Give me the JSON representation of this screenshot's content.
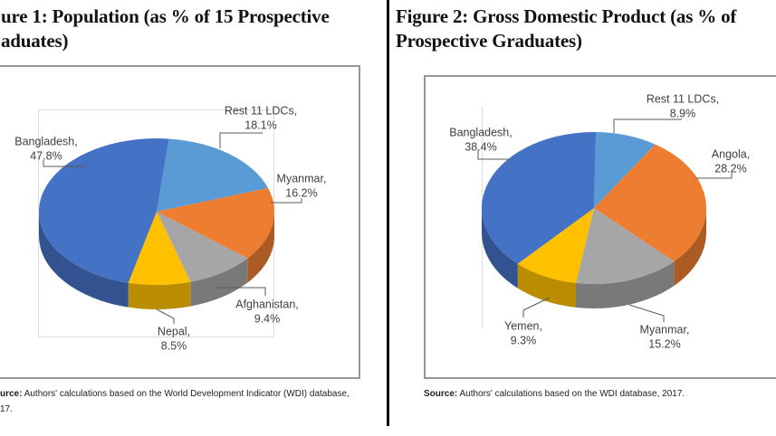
{
  "chart_data": [
    {
      "type": "pie",
      "style": "3d",
      "title_visible_line1": "ure 1: Population (as % of 15 Prospective",
      "title_visible_line2": "aduates)",
      "legend": "none",
      "data_labels": "category name and percentage, outside with leader lines",
      "slice_order": "clockwise from top",
      "slices": [
        {
          "label": "Rest 11 LDCs",
          "value": 18.1,
          "color": "#5b9bd5"
        },
        {
          "label": "Myanmar",
          "value": 16.2,
          "color": "#ed7d31"
        },
        {
          "label": "Afghanistan",
          "value": 9.4,
          "color": "#a6a6a6"
        },
        {
          "label": "Nepal",
          "value": 8.5,
          "color": "#ffc000"
        },
        {
          "label": "Bangladesh",
          "value": 47.8,
          "color": "#4472c4"
        }
      ],
      "source_bold": "urce:",
      "source_rest": " Authors' calculations based on the World Development Indicator (WDI) database,",
      "source_line2": "17."
    },
    {
      "type": "pie",
      "style": "3d",
      "title_visible_line1": "Figure 2: Gross Domestic Product (as % of",
      "title_visible_line2": "Prospective Graduates)",
      "legend": "none",
      "data_labels": "category name and percentage, outside with leader lines",
      "slice_order": "clockwise from top",
      "slices": [
        {
          "label": "Rest 11 LDCs",
          "value": 8.9,
          "color": "#5b9bd5"
        },
        {
          "label": "Angola",
          "value": 28.2,
          "color": "#ed7d31"
        },
        {
          "label": "Myanmar",
          "value": 15.2,
          "color": "#a6a6a6"
        },
        {
          "label": "Yemen",
          "value": 9.3,
          "color": "#ffc000"
        },
        {
          "label": "Bangladesh",
          "value": 38.4,
          "color": "#4472c4"
        }
      ],
      "source_bold": "Source:",
      "source_rest": " Authors' calculations based on the WDI database, 2017."
    }
  ]
}
